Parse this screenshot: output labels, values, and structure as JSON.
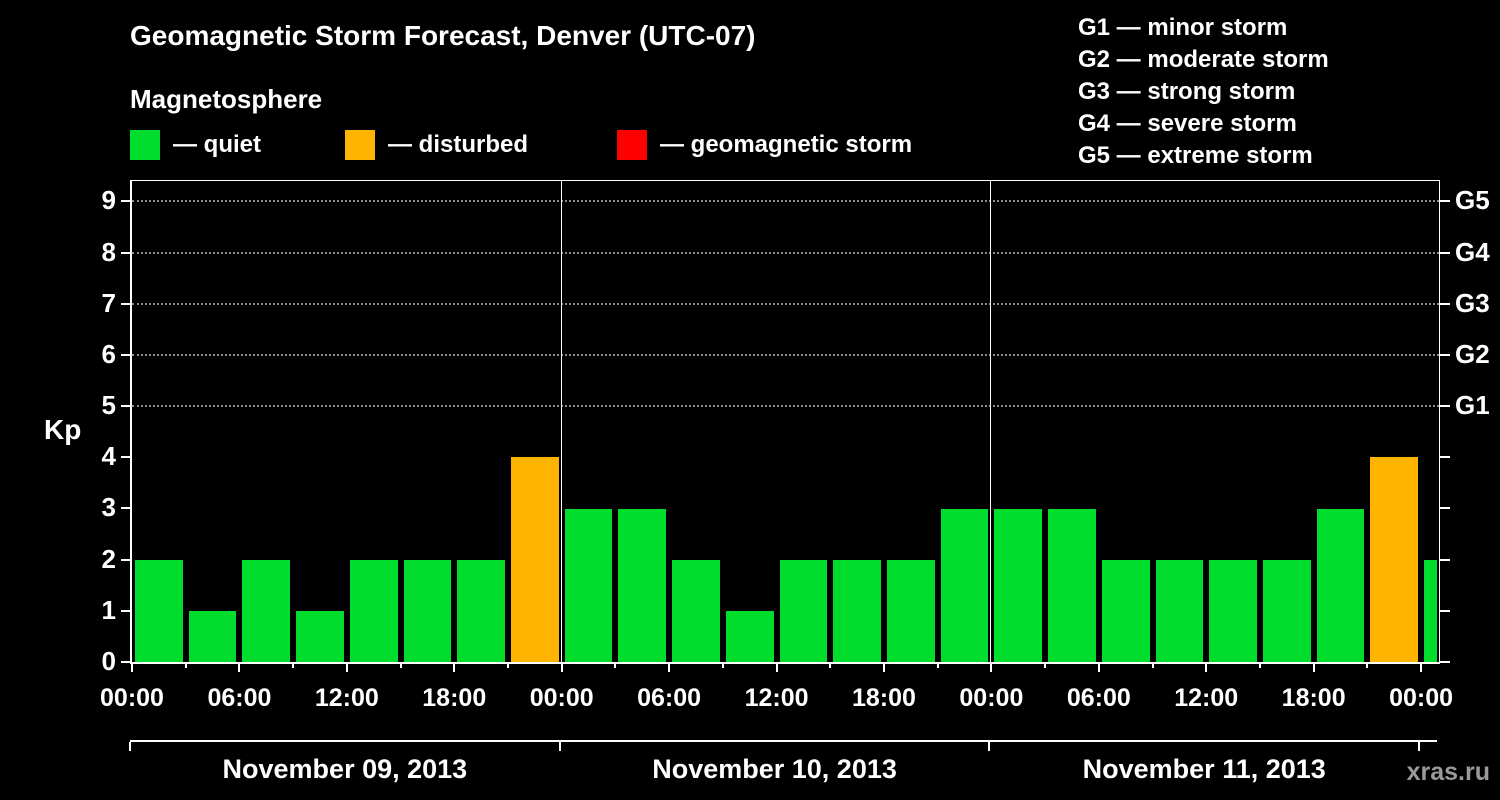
{
  "title": "Geomagnetic Storm Forecast, Denver (UTC-07)",
  "watermark": "xras.ru",
  "legend": {
    "heading": "Magnetosphere",
    "items": [
      {
        "label": "— quiet",
        "status": "quiet",
        "color": "#00dd2c"
      },
      {
        "label": "— disturbed",
        "status": "disturbed",
        "color": "#ffb400"
      },
      {
        "label": "— geomagnetic storm",
        "status": "storm",
        "color": "#ff0000"
      }
    ]
  },
  "g_scale_legend": [
    "G1 — minor storm",
    "G2 — moderate storm",
    "G3 — strong storm",
    "G4 — severe storm",
    "G5 — extreme storm"
  ],
  "chart_data": {
    "type": "bar",
    "title": "Geomagnetic Storm Forecast, Denver (UTC-07)",
    "xlabel": "",
    "ylabel": "Kp",
    "ylim": [
      0,
      9.4
    ],
    "y_ticks": [
      0,
      1,
      2,
      3,
      4,
      5,
      6,
      7,
      8,
      9
    ],
    "gridline_kp": [
      5,
      6,
      7,
      8,
      9
    ],
    "right_axis": [
      {
        "kp": 9,
        "label": "G5"
      },
      {
        "kp": 8,
        "label": "G4"
      },
      {
        "kp": 7,
        "label": "G3"
      },
      {
        "kp": 6,
        "label": "G2"
      },
      {
        "kp": 5,
        "label": "G1"
      }
    ],
    "x_total_hours": 73,
    "x_major_step": 6,
    "x_minor_step": 3,
    "bar_interval_hours": 3,
    "x_tick_labels": [
      "00:00",
      "06:00",
      "12:00",
      "18:00",
      "00:00",
      "06:00",
      "12:00",
      "18:00",
      "00:00",
      "06:00",
      "12:00",
      "18:00",
      "00:00"
    ],
    "bar_colors": {
      "quiet": "#00dd2c",
      "disturbed": "#ffb400",
      "storm": "#ff0000"
    },
    "days": [
      {
        "date": "November 09, 2013",
        "bars": [
          {
            "kp": 2,
            "status": "quiet"
          },
          {
            "kp": 1,
            "status": "quiet"
          },
          {
            "kp": 2,
            "status": "quiet"
          },
          {
            "kp": 1,
            "status": "quiet"
          },
          {
            "kp": 2,
            "status": "quiet"
          },
          {
            "kp": 2,
            "status": "quiet"
          },
          {
            "kp": 2,
            "status": "quiet"
          },
          {
            "kp": 4,
            "status": "disturbed"
          }
        ]
      },
      {
        "date": "November 10, 2013",
        "bars": [
          {
            "kp": 3,
            "status": "quiet"
          },
          {
            "kp": 3,
            "status": "quiet"
          },
          {
            "kp": 2,
            "status": "quiet"
          },
          {
            "kp": 1,
            "status": "quiet"
          },
          {
            "kp": 2,
            "status": "quiet"
          },
          {
            "kp": 2,
            "status": "quiet"
          },
          {
            "kp": 2,
            "status": "quiet"
          },
          {
            "kp": 3,
            "status": "quiet"
          }
        ]
      },
      {
        "date": "November 11, 2013",
        "bars": [
          {
            "kp": 3,
            "status": "quiet"
          },
          {
            "kp": 3,
            "status": "quiet"
          },
          {
            "kp": 2,
            "status": "quiet"
          },
          {
            "kp": 2,
            "status": "quiet"
          },
          {
            "kp": 2,
            "status": "quiet"
          },
          {
            "kp": 2,
            "status": "quiet"
          },
          {
            "kp": 3,
            "status": "quiet"
          },
          {
            "kp": 4,
            "status": "disturbed"
          }
        ]
      }
    ],
    "next_day_partial": {
      "kp": 2,
      "status": "quiet"
    }
  }
}
